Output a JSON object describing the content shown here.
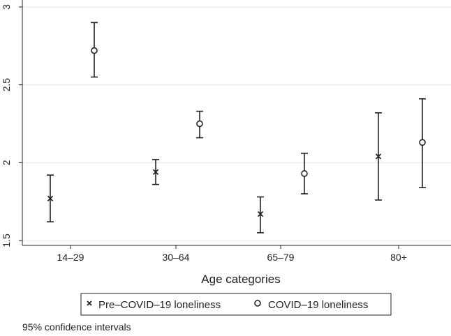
{
  "chart_data": {
    "type": "scatter",
    "title": "",
    "xlabel": "Age categories",
    "ylabel": "",
    "categories": [
      "14–29",
      "30–64",
      "65–79",
      "80+"
    ],
    "ylim": [
      1.5,
      3
    ],
    "yticks": [
      1.5,
      2,
      2.5,
      3
    ],
    "ytick_labels": [
      "1.5",
      "2",
      "2.5",
      "3"
    ],
    "grid": true,
    "series": [
      {
        "name": "Pre–COVID–19 loneliness",
        "marker": "x",
        "values": [
          1.77,
          1.94,
          1.67,
          2.04
        ],
        "lower": [
          1.62,
          1.86,
          1.55,
          1.76
        ],
        "upper": [
          1.92,
          2.02,
          1.78,
          2.32
        ]
      },
      {
        "name": "COVID–19 loneliness",
        "marker": "circle",
        "values": [
          2.72,
          2.25,
          1.93,
          2.13
        ],
        "lower": [
          2.55,
          2.16,
          1.8,
          1.84
        ],
        "upper": [
          2.9,
          2.33,
          2.06,
          2.41
        ]
      }
    ],
    "legend_position": "bottom",
    "note": "95% confidence intervals"
  }
}
